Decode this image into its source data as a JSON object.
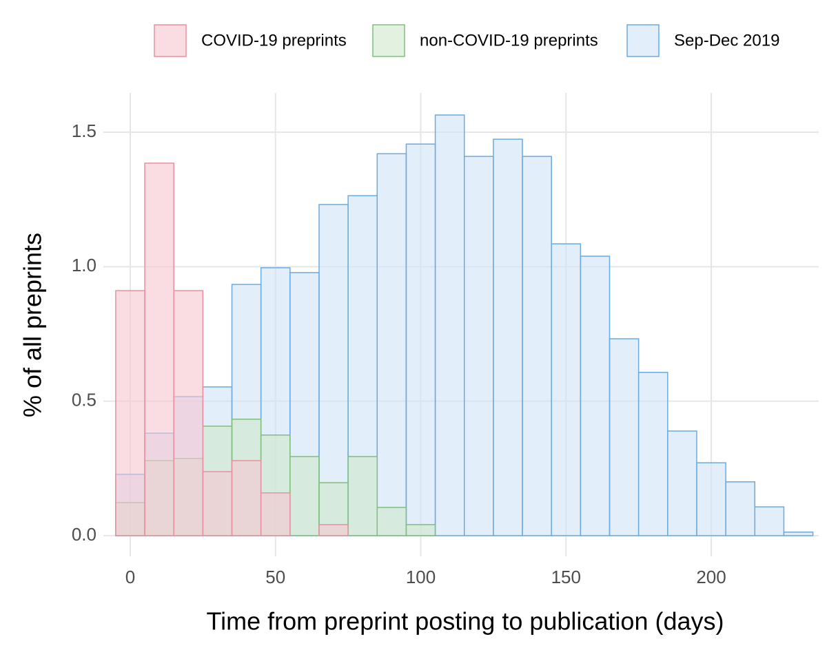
{
  "chart_data": {
    "type": "histogram",
    "x_label": "Time from preprint posting to publication (days)",
    "y_label": "% of all preprints",
    "bins": [
      -5,
      5,
      15,
      25,
      35,
      45,
      55,
      65,
      75,
      85,
      95,
      105,
      115,
      125,
      135,
      145,
      155,
      165,
      175,
      185,
      195,
      205,
      215,
      225,
      235
    ],
    "series": [
      {
        "name": "Sep-Dec 2019",
        "color": "#6aaae0",
        "fill": "#cfe3f6",
        "values": [
          0.228,
          0.381,
          0.517,
          0.553,
          0.934,
          0.996,
          0.978,
          1.231,
          1.264,
          1.42,
          1.456,
          1.564,
          1.41,
          1.474,
          1.41,
          1.085,
          1.039,
          0.732,
          0.607,
          0.389,
          0.271,
          0.2,
          0.107,
          0.013
        ]
      },
      {
        "name": "non-COVID-19 preprints",
        "color": "#7fbf7b",
        "fill": "#cfe8cb",
        "values": [
          0.123,
          0.279,
          0.287,
          0.407,
          0.433,
          0.374,
          0.294,
          0.197,
          0.294,
          0.105,
          0.041,
          0,
          0,
          0,
          0,
          0,
          0,
          0,
          0,
          0,
          0,
          0,
          0,
          0
        ]
      },
      {
        "name": "COVID-19 preprints",
        "color": "#e8909f",
        "fill": "#f5c6d0",
        "values": [
          0.911,
          1.385,
          0.911,
          0.238,
          0.279,
          0.159,
          0,
          0.041,
          0,
          0,
          0,
          0,
          0,
          0,
          0,
          0,
          0,
          0,
          0,
          0,
          0,
          0,
          0,
          0
        ]
      }
    ],
    "legend_order": [
      2,
      1,
      0
    ],
    "xlim": [
      -9.25,
      237
    ],
    "ylim": [
      -0.077,
      1.646
    ],
    "xticks": [
      0,
      50,
      100,
      150,
      200
    ],
    "yticks": [
      {
        "value": 0,
        "label": "0.0"
      },
      {
        "value": 0.5,
        "label": "0.5"
      },
      {
        "value": 1,
        "label": "1.0"
      },
      {
        "value": 1.5,
        "label": "1.5"
      }
    ],
    "grid": true,
    "legend_position": "top"
  }
}
